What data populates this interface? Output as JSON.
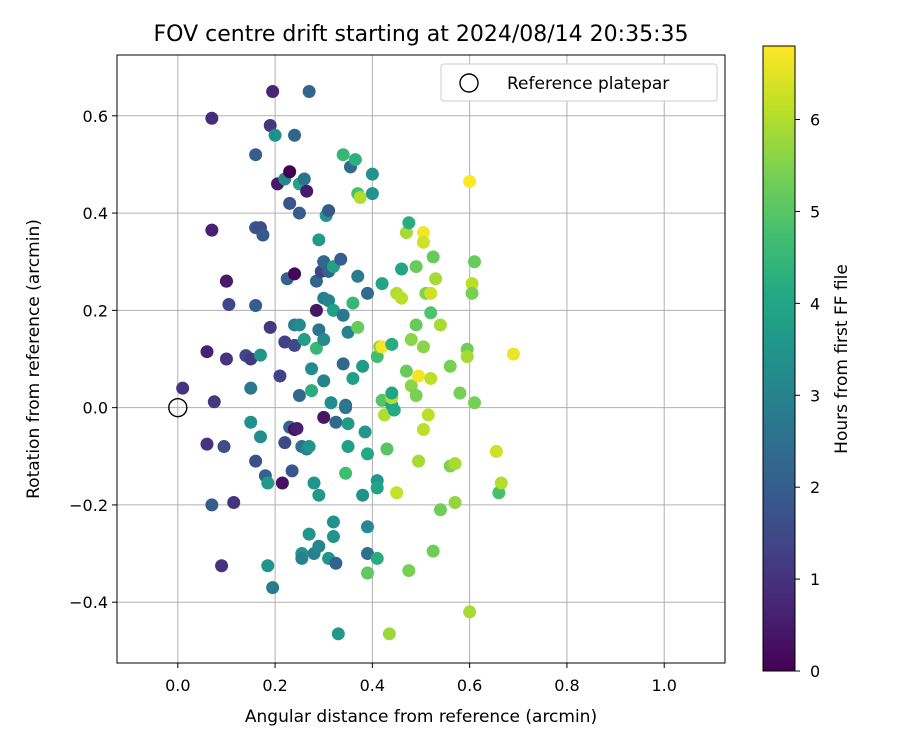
{
  "chart_data": {
    "type": "scatter",
    "title": "FOV centre drift starting at 2024/08/14 20:35:35",
    "xlabel": "Angular distance from reference (arcmin)",
    "ylabel": "Rotation from reference (arcmin)",
    "xlim": [
      -0.125,
      1.125
    ],
    "ylim": [
      -0.525,
      0.725
    ],
    "x_ticks": [
      0.0,
      0.2,
      0.4,
      0.6,
      0.8,
      1.0
    ],
    "x_tick_labels": [
      "0.0",
      "0.2",
      "0.4",
      "0.6",
      "0.8",
      "1.0"
    ],
    "y_ticks": [
      -0.4,
      -0.2,
      0.0,
      0.2,
      0.4,
      0.6
    ],
    "y_tick_labels": [
      "−0.4",
      "−0.2",
      "0.0",
      "0.2",
      "0.4",
      "0.6"
    ],
    "grid": true,
    "legend": {
      "placement": "top-right",
      "entries": [
        "Reference platepar"
      ]
    },
    "reference_point": {
      "x": 0.0,
      "y": 0.0
    },
    "colorbar": {
      "label": "Hours from first FF file",
      "min": 0,
      "max": 6.8,
      "ticks": [
        0,
        1,
        2,
        3,
        4,
        5,
        6
      ],
      "tick_labels": [
        "0",
        "1",
        "2",
        "3",
        "4",
        "5",
        "6"
      ],
      "colormap": "viridis"
    },
    "points": [
      {
        "x": 0.01,
        "y": 0.04,
        "c": 1.0
      },
      {
        "x": 0.06,
        "y": 0.115,
        "c": 0.6
      },
      {
        "x": 0.06,
        "y": -0.075,
        "c": 1.0
      },
      {
        "x": 0.07,
        "y": 0.595,
        "c": 0.9
      },
      {
        "x": 0.07,
        "y": 0.365,
        "c": 0.6
      },
      {
        "x": 0.075,
        "y": 0.012,
        "c": 1.1
      },
      {
        "x": 0.07,
        "y": -0.2,
        "c": 2.0
      },
      {
        "x": 0.09,
        "y": -0.325,
        "c": 1.0
      },
      {
        "x": 0.095,
        "y": -0.08,
        "c": 1.6
      },
      {
        "x": 0.1,
        "y": 0.26,
        "c": 0.4
      },
      {
        "x": 0.1,
        "y": 0.26,
        "c": 0.5
      },
      {
        "x": 0.105,
        "y": 0.212,
        "c": 1.4
      },
      {
        "x": 0.1,
        "y": 0.1,
        "c": 1.0
      },
      {
        "x": 0.115,
        "y": -0.195,
        "c": 1.0
      },
      {
        "x": 0.14,
        "y": 0.107,
        "c": 1.4
      },
      {
        "x": 0.15,
        "y": 0.1,
        "c": 1.1
      },
      {
        "x": 0.15,
        "y": 0.04,
        "c": 2.7
      },
      {
        "x": 0.15,
        "y": -0.03,
        "c": 3.4
      },
      {
        "x": 0.16,
        "y": -0.11,
        "c": 1.6
      },
      {
        "x": 0.16,
        "y": 0.52,
        "c": 2.0
      },
      {
        "x": 0.16,
        "y": 0.37,
        "c": 1.8
      },
      {
        "x": 0.16,
        "y": 0.21,
        "c": 2.0
      },
      {
        "x": 0.17,
        "y": 0.37,
        "c": 1.6
      },
      {
        "x": 0.175,
        "y": 0.355,
        "c": 1.9
      },
      {
        "x": 0.17,
        "y": 0.108,
        "c": 3.5
      },
      {
        "x": 0.17,
        "y": -0.06,
        "c": 3.3
      },
      {
        "x": 0.18,
        "y": -0.14,
        "c": 2.1
      },
      {
        "x": 0.185,
        "y": -0.155,
        "c": 3.7
      },
      {
        "x": 0.185,
        "y": -0.325,
        "c": 3.5
      },
      {
        "x": 0.19,
        "y": 0.58,
        "c": 1.1
      },
      {
        "x": 0.19,
        "y": 0.165,
        "c": 1.1
      },
      {
        "x": 0.195,
        "y": 0.65,
        "c": 0.7
      },
      {
        "x": 0.2,
        "y": 0.56,
        "c": 3.4
      },
      {
        "x": 0.195,
        "y": -0.37,
        "c": 2.8
      },
      {
        "x": 0.205,
        "y": 0.46,
        "c": 0.5
      },
      {
        "x": 0.21,
        "y": 0.065,
        "c": 1.3
      },
      {
        "x": 0.215,
        "y": -0.155,
        "c": 0.3
      },
      {
        "x": 0.22,
        "y": 0.47,
        "c": 3.1
      },
      {
        "x": 0.22,
        "y": 0.135,
        "c": 1.3
      },
      {
        "x": 0.22,
        "y": -0.072,
        "c": 1.5
      },
      {
        "x": 0.225,
        "y": 0.265,
        "c": 2.1
      },
      {
        "x": 0.23,
        "y": 0.485,
        "c": 0.0
      },
      {
        "x": 0.23,
        "y": 0.42,
        "c": 1.8
      },
      {
        "x": 0.23,
        "y": -0.04,
        "c": 2.2
      },
      {
        "x": 0.235,
        "y": -0.13,
        "c": 1.8
      },
      {
        "x": 0.24,
        "y": 0.275,
        "c": 0.1
      },
      {
        "x": 0.24,
        "y": 0.128,
        "c": 1.5
      },
      {
        "x": 0.24,
        "y": 0.56,
        "c": 2.2
      },
      {
        "x": 0.24,
        "y": 0.17,
        "c": 2.9
      },
      {
        "x": 0.24,
        "y": -0.045,
        "c": 0.2
      },
      {
        "x": 0.245,
        "y": -0.043,
        "c": 0.6
      },
      {
        "x": 0.25,
        "y": 0.46,
        "c": 3.9
      },
      {
        "x": 0.25,
        "y": 0.4,
        "c": 2.0
      },
      {
        "x": 0.25,
        "y": 0.025,
        "c": 2.3
      },
      {
        "x": 0.25,
        "y": 0.17,
        "c": 3.2
      },
      {
        "x": 0.255,
        "y": -0.08,
        "c": 2.5
      },
      {
        "x": 0.255,
        "y": -0.3,
        "c": 3.5
      },
      {
        "x": 0.255,
        "y": -0.31,
        "c": 3.0
      },
      {
        "x": 0.26,
        "y": 0.47,
        "c": 2.6
      },
      {
        "x": 0.26,
        "y": 0.14,
        "c": 3.8
      },
      {
        "x": 0.265,
        "y": 0.445,
        "c": 0.5
      },
      {
        "x": 0.265,
        "y": -0.085,
        "c": 3.0
      },
      {
        "x": 0.27,
        "y": -0.08,
        "c": 3.5
      },
      {
        "x": 0.27,
        "y": 0.65,
        "c": 2.2
      },
      {
        "x": 0.27,
        "y": -0.26,
        "c": 3.5
      },
      {
        "x": 0.275,
        "y": 0.08,
        "c": 3.2
      },
      {
        "x": 0.275,
        "y": 0.035,
        "c": 4.2
      },
      {
        "x": 0.28,
        "y": -0.155,
        "c": 3.5
      },
      {
        "x": 0.28,
        "y": -0.3,
        "c": 3.0
      },
      {
        "x": 0.285,
        "y": 0.2,
        "c": 0.4
      },
      {
        "x": 0.285,
        "y": 0.122,
        "c": 4.5
      },
      {
        "x": 0.285,
        "y": 0.26,
        "c": 2.2
      },
      {
        "x": 0.29,
        "y": 0.345,
        "c": 3.7
      },
      {
        "x": 0.29,
        "y": 0.16,
        "c": 2.6
      },
      {
        "x": 0.29,
        "y": -0.18,
        "c": 3.6
      },
      {
        "x": 0.29,
        "y": -0.285,
        "c": 3.1
      },
      {
        "x": 0.295,
        "y": 0.28,
        "c": 1.3
      },
      {
        "x": 0.3,
        "y": 0.3,
        "c": 2.6
      },
      {
        "x": 0.3,
        "y": 0.3,
        "c": 2.3
      },
      {
        "x": 0.3,
        "y": 0.14,
        "c": 3.2
      },
      {
        "x": 0.3,
        "y": 0.225,
        "c": 2.9
      },
      {
        "x": 0.3,
        "y": 0.055,
        "c": 3.0
      },
      {
        "x": 0.3,
        "y": -0.02,
        "c": 0.4
      },
      {
        "x": 0.305,
        "y": 0.395,
        "c": 3.6
      },
      {
        "x": 0.31,
        "y": 0.405,
        "c": 1.9
      },
      {
        "x": 0.31,
        "y": -0.31,
        "c": 3.5
      },
      {
        "x": 0.31,
        "y": 0.22,
        "c": 3.0
      },
      {
        "x": 0.31,
        "y": 0.28,
        "c": 2.2
      },
      {
        "x": 0.315,
        "y": 0.01,
        "c": 3.3
      },
      {
        "x": 0.32,
        "y": 0.2,
        "c": 3.8
      },
      {
        "x": 0.32,
        "y": 0.29,
        "c": 3.8
      },
      {
        "x": 0.32,
        "y": -0.235,
        "c": 3.4
      },
      {
        "x": 0.32,
        "y": -0.265,
        "c": 3.5
      },
      {
        "x": 0.325,
        "y": -0.32,
        "c": 2.2
      },
      {
        "x": 0.325,
        "y": -0.03,
        "c": 2.3
      },
      {
        "x": 0.33,
        "y": -0.465,
        "c": 3.7
      },
      {
        "x": 0.335,
        "y": 0.305,
        "c": 2.0
      },
      {
        "x": 0.34,
        "y": 0.19,
        "c": 2.7
      },
      {
        "x": 0.34,
        "y": 0.09,
        "c": 2.3
      },
      {
        "x": 0.34,
        "y": 0.52,
        "c": 4.5
      },
      {
        "x": 0.345,
        "y": 0.005,
        "c": 2.5
      },
      {
        "x": 0.345,
        "y": 0.0,
        "c": 2.7
      },
      {
        "x": 0.345,
        "y": -0.135,
        "c": 4.7
      },
      {
        "x": 0.35,
        "y": 0.155,
        "c": 3.0
      },
      {
        "x": 0.35,
        "y": -0.08,
        "c": 3.8
      },
      {
        "x": 0.35,
        "y": -0.033,
        "c": 3.7
      },
      {
        "x": 0.355,
        "y": 0.495,
        "c": 2.3
      },
      {
        "x": 0.36,
        "y": 0.06,
        "c": 3.8
      },
      {
        "x": 0.36,
        "y": 0.215,
        "c": 4.5
      },
      {
        "x": 0.365,
        "y": 0.51,
        "c": 4.3
      },
      {
        "x": 0.37,
        "y": 0.165,
        "c": 5.2
      },
      {
        "x": 0.37,
        "y": 0.27,
        "c": 2.8
      },
      {
        "x": 0.37,
        "y": 0.44,
        "c": 4.8
      },
      {
        "x": 0.375,
        "y": 0.432,
        "c": 6.0
      },
      {
        "x": 0.38,
        "y": 0.085,
        "c": 3.7
      },
      {
        "x": 0.38,
        "y": -0.18,
        "c": 3.4
      },
      {
        "x": 0.385,
        "y": -0.05,
        "c": 3.6
      },
      {
        "x": 0.39,
        "y": 0.235,
        "c": 2.4
      },
      {
        "x": 0.39,
        "y": -0.3,
        "c": 2.5
      },
      {
        "x": 0.39,
        "y": -0.34,
        "c": 5.1
      },
      {
        "x": 0.39,
        "y": -0.245,
        "c": 3.2
      },
      {
        "x": 0.39,
        "y": -0.095,
        "c": 4.1
      },
      {
        "x": 0.4,
        "y": 0.44,
        "c": 3.5
      },
      {
        "x": 0.4,
        "y": 0.48,
        "c": 3.5
      },
      {
        "x": 0.41,
        "y": -0.15,
        "c": 3.6
      },
      {
        "x": 0.41,
        "y": -0.165,
        "c": 3.9
      },
      {
        "x": 0.41,
        "y": 0.105,
        "c": 4.7
      },
      {
        "x": 0.41,
        "y": -0.31,
        "c": 4.2
      },
      {
        "x": 0.415,
        "y": 0.125,
        "c": 5.6
      },
      {
        "x": 0.42,
        "y": 0.125,
        "c": 6.7
      },
      {
        "x": 0.42,
        "y": 0.255,
        "c": 4.0
      },
      {
        "x": 0.42,
        "y": 0.015,
        "c": 5.0
      },
      {
        "x": 0.425,
        "y": -0.015,
        "c": 6.0
      },
      {
        "x": 0.43,
        "y": -0.085,
        "c": 5.0
      },
      {
        "x": 0.435,
        "y": -0.465,
        "c": 5.8
      },
      {
        "x": 0.44,
        "y": 0.13,
        "c": 4.2
      },
      {
        "x": 0.44,
        "y": 0.005,
        "c": 4.0
      },
      {
        "x": 0.44,
        "y": 0.02,
        "c": 6.0
      },
      {
        "x": 0.44,
        "y": 0.03,
        "c": 4.0
      },
      {
        "x": 0.445,
        "y": -0.005,
        "c": 4.1
      },
      {
        "x": 0.45,
        "y": 0.235,
        "c": 6.0
      },
      {
        "x": 0.45,
        "y": -0.175,
        "c": 6.2
      },
      {
        "x": 0.46,
        "y": 0.285,
        "c": 4.0
      },
      {
        "x": 0.46,
        "y": 0.225,
        "c": 6.1
      },
      {
        "x": 0.47,
        "y": 0.36,
        "c": 5.9
      },
      {
        "x": 0.47,
        "y": 0.075,
        "c": 5.2
      },
      {
        "x": 0.475,
        "y": 0.38,
        "c": 4.2
      },
      {
        "x": 0.475,
        "y": -0.335,
        "c": 5.4
      },
      {
        "x": 0.48,
        "y": 0.14,
        "c": 5.6
      },
      {
        "x": 0.48,
        "y": 0.045,
        "c": 5.6
      },
      {
        "x": 0.49,
        "y": 0.29,
        "c": 5.2
      },
      {
        "x": 0.49,
        "y": 0.17,
        "c": 5.2
      },
      {
        "x": 0.49,
        "y": 0.025,
        "c": 5.4
      },
      {
        "x": 0.495,
        "y": 0.065,
        "c": 6.7
      },
      {
        "x": 0.495,
        "y": -0.11,
        "c": 5.9
      },
      {
        "x": 0.505,
        "y": 0.36,
        "c": 6.7
      },
      {
        "x": 0.505,
        "y": 0.34,
        "c": 6.3
      },
      {
        "x": 0.505,
        "y": 0.125,
        "c": 5.6
      },
      {
        "x": 0.505,
        "y": -0.045,
        "c": 6.1
      },
      {
        "x": 0.51,
        "y": 0.235,
        "c": 5.5
      },
      {
        "x": 0.515,
        "y": -0.015,
        "c": 6.1
      },
      {
        "x": 0.52,
        "y": 0.235,
        "c": 6.3
      },
      {
        "x": 0.52,
        "y": 0.195,
        "c": 4.9
      },
      {
        "x": 0.52,
        "y": 0.06,
        "c": 6.1
      },
      {
        "x": 0.525,
        "y": 0.31,
        "c": 5.2
      },
      {
        "x": 0.525,
        "y": -0.295,
        "c": 5.3
      },
      {
        "x": 0.53,
        "y": 0.265,
        "c": 5.9
      },
      {
        "x": 0.54,
        "y": 0.17,
        "c": 5.9
      },
      {
        "x": 0.54,
        "y": -0.21,
        "c": 5.3
      },
      {
        "x": 0.56,
        "y": 0.085,
        "c": 5.4
      },
      {
        "x": 0.56,
        "y": -0.12,
        "c": 5.5
      },
      {
        "x": 0.57,
        "y": -0.195,
        "c": 5.7
      },
      {
        "x": 0.57,
        "y": -0.115,
        "c": 5.9
      },
      {
        "x": 0.58,
        "y": 0.03,
        "c": 5.4
      },
      {
        "x": 0.595,
        "y": 0.12,
        "c": 5.3
      },
      {
        "x": 0.595,
        "y": 0.105,
        "c": 5.9
      },
      {
        "x": 0.6,
        "y": -0.42,
        "c": 5.9
      },
      {
        "x": 0.6,
        "y": 0.465,
        "c": 6.8
      },
      {
        "x": 0.605,
        "y": 0.255,
        "c": 6.1
      },
      {
        "x": 0.605,
        "y": 0.235,
        "c": 5.4
      },
      {
        "x": 0.61,
        "y": 0.3,
        "c": 5.2
      },
      {
        "x": 0.61,
        "y": 0.01,
        "c": 5.4
      },
      {
        "x": 0.655,
        "y": -0.09,
        "c": 6.3
      },
      {
        "x": 0.66,
        "y": -0.175,
        "c": 4.8
      },
      {
        "x": 0.665,
        "y": -0.155,
        "c": 6.0
      },
      {
        "x": 0.69,
        "y": 0.11,
        "c": 6.6
      }
    ]
  }
}
